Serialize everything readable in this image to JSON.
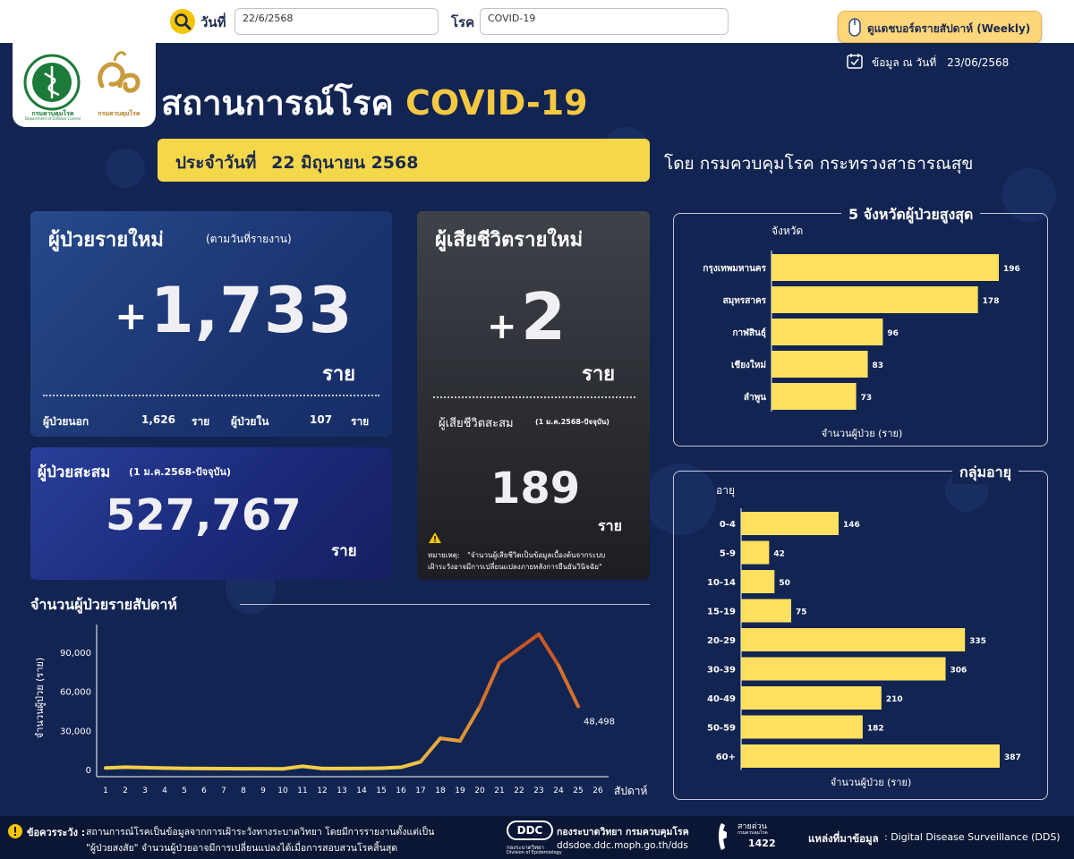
{
  "filters": {
    "date_label": "วันที่",
    "date_value": "22/6/2568",
    "disease_label": "โรค",
    "disease_value": "COVID-19",
    "weekly_button": "ดูแดชบอร์ดรายสัปดาห์ (Weekly)"
  },
  "header": {
    "title_th": "สถานการณ์โรค",
    "title_disease": "COVID-19",
    "date_line_prefix": "ประจำวันที่",
    "date_line_value": "22 มิถุนายน 2568",
    "by_line": "โดย กรมควบคุมโรค  กระทรวงสาธารณสุข",
    "data_as_of_label": "ข้อมูล ณ วันที่",
    "data_as_of_value": "23/06/2568",
    "logo1_text": "กรมควบคุมโรค",
    "logo1_sub": "Department of Disease Control",
    "logo2_text": "กรมควบคุมโรค"
  },
  "new_cases": {
    "title": "ผู้ป่วยรายใหม่",
    "subtitle": "(ตามวันที่รายงาน)",
    "plus": "+",
    "value": "1,733",
    "unit": "ราย",
    "outpatient_label": "ผู้ป่วยนอก",
    "outpatient_value": "1,626",
    "outpatient_unit": "ราย",
    "inpatient_label": "ผู้ป่วยใน",
    "inpatient_value": "107",
    "inpatient_unit": "ราย"
  },
  "cumulative_cases": {
    "title": "ผู้ป่วยสะสม",
    "subtitle": "(1 ม.ค.2568-ปัจจุบัน)",
    "value": "527,767",
    "unit": "ราย"
  },
  "new_deaths": {
    "title": "ผู้เสียชีวิตรายใหม่",
    "plus": "+",
    "value": "2",
    "unit": "ราย",
    "cumulative_label": "ผู้เสียชีวิตสะสม",
    "cumulative_sub": "(1 ม.ค.2568-ปัจจุบัน)",
    "cumulative_value": "189",
    "cumulative_unit": "ราย",
    "note_label": "หมายเหตุ:",
    "note_line1": "\"จำนวนผู้เสียชีวิตเป็นข้อมูลเบื้องต้นจากระบบ",
    "note_line2": "เฝ้าระวังอาจมีการเปลี่ยนแปลงภายหลังการยืนยันวินิจฉัย\""
  },
  "weekly_section_title": "จำนวนผู้ป่วยรายสัปดาห์",
  "top5_section_title": "5  จังหวัดผู้ป่วยสูงสุด",
  "age_section_title": "กลุ่มอายุ",
  "chart_data": [
    {
      "type": "line",
      "title": "จำนวนผู้ป่วยรายสัปดาห์",
      "xlabel": "สัปดาห์",
      "ylabel": "จำนวนผู้ป่วย (ราย)",
      "x": [
        1,
        2,
        3,
        4,
        5,
        6,
        7,
        8,
        9,
        10,
        11,
        12,
        13,
        14,
        15,
        16,
        17,
        18,
        19,
        20,
        21,
        22,
        23,
        24,
        25
      ],
      "x_ticks": [
        1,
        2,
        3,
        4,
        5,
        6,
        7,
        8,
        9,
        10,
        11,
        12,
        13,
        14,
        15,
        16,
        17,
        18,
        19,
        20,
        21,
        22,
        23,
        24,
        25,
        26
      ],
      "values": [
        1200,
        1800,
        1500,
        1100,
        900,
        800,
        700,
        600,
        600,
        500,
        2500,
        800,
        800,
        900,
        1000,
        1700,
        6000,
        24000,
        22000,
        48000,
        82000,
        93000,
        104000,
        80000,
        48498
      ],
      "y_ticks": [
        "0",
        "30,000",
        "60,000",
        "90,000"
      ],
      "y_tick_values": [
        0,
        30000,
        60000,
        90000
      ],
      "ylim": [
        0,
        110000
      ],
      "last_label": "48,498",
      "color_low": "#f5d84a",
      "color_high": "#c64a1f"
    },
    {
      "type": "bar",
      "orientation": "horizontal",
      "title": "5  จังหวัดผู้ป่วยสูงสุด",
      "category_header": "จังหวัด",
      "xlabel": "จำนวนผู้ป่วย (ราย)",
      "categories": [
        "กรุงเทพมหานคร",
        "สมุทรสาคร",
        "กาฬสินธุ์",
        "เชียงใหม่",
        "ลำพูน"
      ],
      "values": [
        196,
        178,
        96,
        83,
        73
      ],
      "xlim": [
        0,
        196
      ],
      "color": "#ffe060"
    },
    {
      "type": "bar",
      "orientation": "horizontal",
      "title": "กลุ่มอายุ",
      "category_header": "อายุ",
      "xlabel": "จำนวนผู้ป่วย (ราย)",
      "categories": [
        "0-4",
        "5-9",
        "10-14",
        "15-19",
        "20-29",
        "30-39",
        "40-49",
        "50-59",
        "60+"
      ],
      "values": [
        146,
        42,
        50,
        75,
        335,
        306,
        210,
        182,
        387
      ],
      "xlim": [
        0,
        387
      ],
      "color": "#ffe060"
    }
  ],
  "footer": {
    "caution_label": "ข้อควรระวัง :",
    "caution_line1": "สถานการณ์โรคเป็นข้อมูลจากการเฝ้าระวังทางระบาดวิทยา โดยมีการรายงานตั้งแต่เป็น",
    "caution_line2": "\"ผู้ป่วยสงสัย\" จำนวนผู้ป่วยอาจมีการเปลี่ยนแปลงได้เมื่อการสอบสวนโรคสิ้นสุด",
    "ddc_logo": "DDC",
    "ddc_sub": "กองระบาดวิทยา",
    "ddc_sub_en": "Division of Epidemiology",
    "division_name": "กองระบาดวิทยา กรมควบคุมโรค",
    "division_url": "ddsdoe.ddc.moph.go.th/dds",
    "hotline_label": "สายด่วน",
    "hotline_sub": "กรมควบคุมโรค",
    "hotline_number": "1422",
    "source_label": "แหล่งที่มาข้อมูล",
    "source_value": ":  Digital Disease Surveillance (DDS)"
  },
  "colors": {
    "background": "#122452",
    "accent_yellow": "#f5d84a",
    "bar_yellow": "#ffe060",
    "line_orange": "#c64a1f"
  }
}
